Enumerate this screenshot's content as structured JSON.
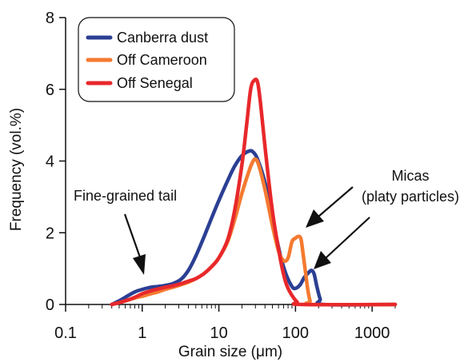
{
  "chart_data": {
    "type": "line",
    "xscale": "log",
    "xlabel": "Grain size (μm)",
    "ylabel": "Frequency (vol.%)",
    "xlim": [
      0.1,
      2000
    ],
    "ylim": [
      0,
      8
    ],
    "xticks": [
      0.1,
      1,
      10,
      100,
      1000
    ],
    "xtick_labels": [
      "0.1",
      "1",
      "10",
      "100",
      "1000"
    ],
    "yticks": [
      0,
      2,
      4,
      6,
      8
    ],
    "ytick_labels": [
      "0",
      "2",
      "4",
      "6",
      "8"
    ],
    "grid": false,
    "legend_position": "top-left",
    "series": [
      {
        "name": "Canberra dust",
        "color": "#2B3F93",
        "points": [
          [
            0.4,
            0.0
          ],
          [
            0.5,
            0.1
          ],
          [
            0.6,
            0.2
          ],
          [
            0.8,
            0.35
          ],
          [
            1.0,
            0.42
          ],
          [
            1.3,
            0.48
          ],
          [
            1.6,
            0.5
          ],
          [
            2.0,
            0.53
          ],
          [
            2.5,
            0.58
          ],
          [
            3.2,
            0.7
          ],
          [
            4.0,
            0.95
          ],
          [
            5.0,
            1.35
          ],
          [
            6.3,
            1.85
          ],
          [
            8.0,
            2.4
          ],
          [
            10.0,
            2.9
          ],
          [
            13.0,
            3.45
          ],
          [
            16.0,
            3.85
          ],
          [
            20.0,
            4.15
          ],
          [
            25.0,
            4.28
          ],
          [
            28.0,
            4.25
          ],
          [
            32.0,
            4.05
          ],
          [
            40.0,
            3.4
          ],
          [
            50.0,
            2.4
          ],
          [
            63.0,
            1.4
          ],
          [
            75.0,
            0.85
          ],
          [
            90.0,
            0.5
          ],
          [
            100.0,
            0.45
          ],
          [
            115.0,
            0.55
          ],
          [
            130.0,
            0.75
          ],
          [
            150.0,
            0.9
          ],
          [
            162.0,
            0.95
          ],
          [
            175.0,
            0.85
          ],
          [
            190.0,
            0.5
          ],
          [
            210.0,
            0.15
          ],
          [
            230.0,
            0.0
          ],
          [
            2000.0,
            0.0
          ]
        ]
      },
      {
        "name": "Off Cameroon",
        "color": "#F47A30",
        "points": [
          [
            0.4,
            0.0
          ],
          [
            0.5,
            0.05
          ],
          [
            0.6,
            0.1
          ],
          [
            0.8,
            0.18
          ],
          [
            1.0,
            0.23
          ],
          [
            1.3,
            0.3
          ],
          [
            1.6,
            0.35
          ],
          [
            2.0,
            0.42
          ],
          [
            2.5,
            0.48
          ],
          [
            3.2,
            0.55
          ],
          [
            4.0,
            0.62
          ],
          [
            5.0,
            0.72
          ],
          [
            6.3,
            0.85
          ],
          [
            8.0,
            1.05
          ],
          [
            10.0,
            1.3
          ],
          [
            13.0,
            1.75
          ],
          [
            16.0,
            2.35
          ],
          [
            20.0,
            3.1
          ],
          [
            25.0,
            3.75
          ],
          [
            28.0,
            4.0
          ],
          [
            30.0,
            4.05
          ],
          [
            33.0,
            3.9
          ],
          [
            40.0,
            3.2
          ],
          [
            50.0,
            2.2
          ],
          [
            60.0,
            1.5
          ],
          [
            70.0,
            1.22
          ],
          [
            80.0,
            1.3
          ],
          [
            90.0,
            1.75
          ],
          [
            100.0,
            1.85
          ],
          [
            110.0,
            1.9
          ],
          [
            118.0,
            1.82
          ],
          [
            125.0,
            1.45
          ],
          [
            135.0,
            0.9
          ],
          [
            145.0,
            0.4
          ],
          [
            155.0,
            0.1
          ],
          [
            165.0,
            0.0
          ],
          [
            2000.0,
            0.0
          ]
        ]
      },
      {
        "name": "Off Senegal",
        "color": "#E8282B",
        "points": [
          [
            0.4,
            0.0
          ],
          [
            0.5,
            0.05
          ],
          [
            0.6,
            0.1
          ],
          [
            0.8,
            0.2
          ],
          [
            1.0,
            0.3
          ],
          [
            1.3,
            0.38
          ],
          [
            1.6,
            0.43
          ],
          [
            2.0,
            0.48
          ],
          [
            2.5,
            0.52
          ],
          [
            3.2,
            0.58
          ],
          [
            4.0,
            0.65
          ],
          [
            5.0,
            0.72
          ],
          [
            6.3,
            0.85
          ],
          [
            8.0,
            1.05
          ],
          [
            10.0,
            1.3
          ],
          [
            13.0,
            1.8
          ],
          [
            16.0,
            2.6
          ],
          [
            20.0,
            3.9
          ],
          [
            23.0,
            5.0
          ],
          [
            26.0,
            6.0
          ],
          [
            29.0,
            6.25
          ],
          [
            32.0,
            6.2
          ],
          [
            35.0,
            5.6
          ],
          [
            40.0,
            4.4
          ],
          [
            50.0,
            2.6
          ],
          [
            63.0,
            1.3
          ],
          [
            75.0,
            0.6
          ],
          [
            90.0,
            0.25
          ],
          [
            105.0,
            0.07
          ],
          [
            120.0,
            0.0
          ],
          [
            2000.0,
            0.0
          ]
        ]
      }
    ],
    "annotations": [
      {
        "text": "Fine-grained tail"
      },
      {
        "text": "Micas"
      },
      {
        "text": "(platy particles)"
      }
    ]
  }
}
